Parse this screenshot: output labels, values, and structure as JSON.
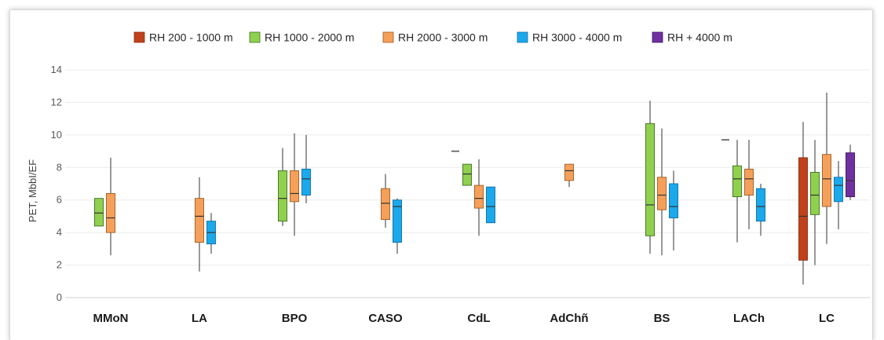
{
  "chart_data": {
    "type": "box",
    "title": "",
    "xlabel": "",
    "ylabel": "PET, MbbI/EF",
    "ylim": [
      0,
      14
    ],
    "yticks": [
      0,
      2,
      4,
      6,
      8,
      10,
      12,
      14
    ],
    "grid": "horizontal",
    "legend_position": "top",
    "categories": [
      "MMoN",
      "LA",
      "BPO",
      "CASO",
      "CdL",
      "AdChñ",
      "BS",
      "LACh",
      "LC"
    ],
    "series": [
      {
        "name": "RH 200 - 1000 m",
        "color": "#c0411b",
        "stroke": "#8a2d10",
        "boxes": [
          null,
          null,
          null,
          null,
          null,
          null,
          null,
          null,
          {
            "min": 0.8,
            "q1": 2.3,
            "median": 5.0,
            "q3": 8.6,
            "max": 10.8
          }
        ]
      },
      {
        "name": "RH 1000 - 2000 m",
        "color": "#8fd14f",
        "stroke": "#3f6d1f",
        "boxes": [
          {
            "min": 4.4,
            "q1": 4.4,
            "median": 5.2,
            "q3": 6.1,
            "max": 6.1
          },
          null,
          {
            "min": 4.4,
            "q1": 4.7,
            "median": 6.1,
            "q3": 7.8,
            "max": 9.2
          },
          null,
          {
            "min": 6.9,
            "q1": 6.9,
            "median": 7.6,
            "q3": 8.2,
            "max": 8.2
          },
          null,
          {
            "min": 2.7,
            "q1": 3.8,
            "median": 5.7,
            "q3": 10.7,
            "max": 12.1
          },
          {
            "min": 3.4,
            "q1": 6.2,
            "median": 7.3,
            "q3": 8.1,
            "max": 9.7
          },
          {
            "min": 2.0,
            "q1": 5.1,
            "median": 6.3,
            "q3": 7.7,
            "max": 9.7
          }
        ]
      },
      {
        "name": "RH 2000 - 3000 m",
        "color": "#f5a05a",
        "stroke": "#a05a1e",
        "boxes": [
          {
            "min": 2.6,
            "q1": 4.0,
            "median": 4.9,
            "q3": 6.4,
            "max": 8.6
          },
          {
            "min": 1.6,
            "q1": 3.4,
            "median": 5.0,
            "q3": 6.1,
            "max": 7.4
          },
          {
            "min": 3.8,
            "q1": 5.9,
            "median": 6.4,
            "q3": 7.8,
            "max": 10.1
          },
          {
            "min": 4.3,
            "q1": 4.8,
            "median": 5.8,
            "q3": 6.7,
            "max": 7.6
          },
          {
            "min": 3.8,
            "q1": 5.5,
            "median": 6.1,
            "q3": 6.9,
            "max": 8.5
          },
          {
            "min": 6.8,
            "q1": 7.2,
            "median": 7.8,
            "q3": 8.2,
            "max": 8.2
          },
          {
            "min": 2.6,
            "q1": 5.4,
            "median": 6.3,
            "q3": 7.4,
            "max": 10.4
          },
          {
            "min": 4.2,
            "q1": 6.3,
            "median": 7.3,
            "q3": 7.9,
            "max": 9.7
          },
          {
            "min": 3.3,
            "q1": 5.6,
            "median": 7.3,
            "q3": 8.8,
            "max": 12.6
          }
        ]
      },
      {
        "name": "RH 3000 - 4000 m",
        "color": "#1ba9ec",
        "stroke": "#0a6ea5",
        "boxes": [
          null,
          {
            "min": 2.7,
            "q1": 3.3,
            "median": 4.0,
            "q3": 4.7,
            "max": 5.2
          },
          {
            "min": 5.8,
            "q1": 6.3,
            "median": 7.3,
            "q3": 7.9,
            "max": 10.0
          },
          {
            "min": 2.7,
            "q1": 3.4,
            "median": 5.6,
            "q3": 6.0,
            "max": 6.1
          },
          {
            "min": 4.6,
            "q1": 4.6,
            "median": 5.6,
            "q3": 6.8,
            "max": 6.8
          },
          null,
          {
            "min": 2.9,
            "q1": 4.9,
            "median": 5.6,
            "q3": 7.0,
            "max": 7.8
          },
          {
            "min": 3.8,
            "q1": 4.7,
            "median": 5.6,
            "q3": 6.7,
            "max": 7.0
          },
          {
            "min": 4.2,
            "q1": 5.9,
            "median": 6.9,
            "q3": 7.4,
            "max": 8.4
          }
        ]
      },
      {
        "name": "RH + 4000 m",
        "color": "#7030a0",
        "stroke": "#3c1563",
        "boxes": [
          null,
          null,
          null,
          null,
          null,
          null,
          null,
          null,
          {
            "min": 6.0,
            "q1": 6.2,
            "median": 7.2,
            "q3": 8.9,
            "max": 9.4
          }
        ]
      }
    ],
    "single_markers": [
      {
        "category": "CdL",
        "series": "RH 200 - 1000 m",
        "value": 9.0
      },
      {
        "category": "LACh",
        "series": "RH 200 - 1000 m",
        "value": 9.7
      }
    ]
  }
}
